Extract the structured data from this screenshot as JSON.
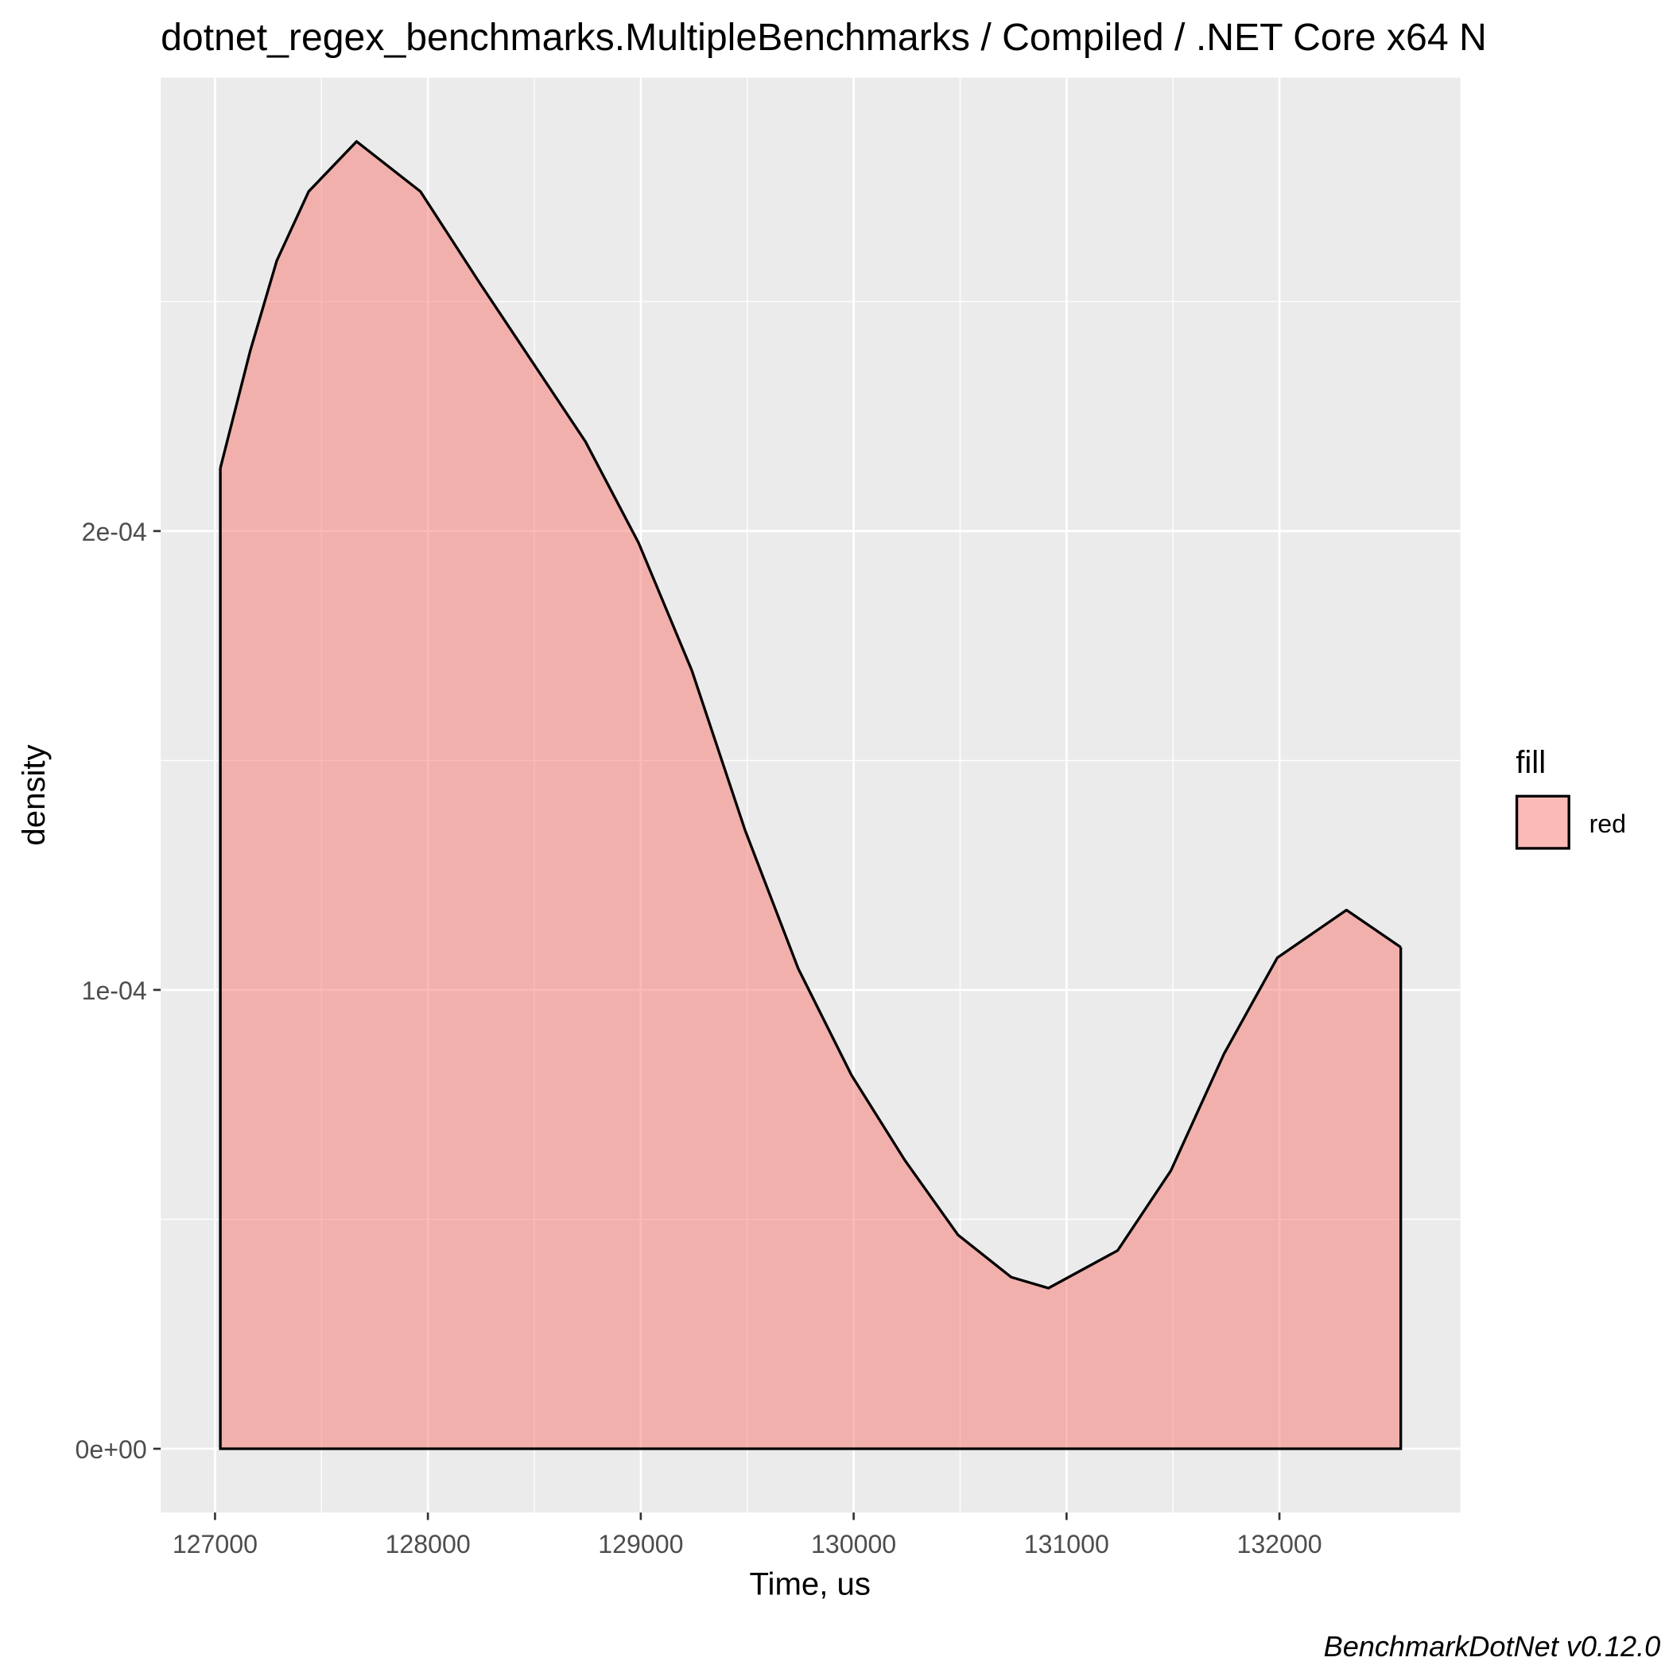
{
  "chart_data": {
    "type": "density",
    "title": "dotnet_regex_benchmarks.MultipleBenchmarks / Compiled / .NET Core x64 N",
    "x_label": "Time, us",
    "y_label": "density",
    "caption": "BenchmarkDotNet v0.12.0",
    "legend_title": "fill",
    "legend_position": "right",
    "series": [
      {
        "name": "red",
        "color": "#F8766D",
        "opacity": 0.5,
        "x": [
          127025,
          127165,
          127290,
          127440,
          127665,
          127965,
          128240,
          128490,
          128740,
          128990,
          129240,
          129490,
          129740,
          129990,
          130240,
          130490,
          130740,
          130915,
          131240,
          131490,
          131740,
          131990,
          132315,
          132570
        ],
        "values": [
          0.0002137,
          0.0002392,
          0.0002589,
          0.000274,
          0.0002849,
          0.000274,
          0.0002543,
          0.0002369,
          0.0002195,
          0.0001974,
          0.0001696,
          0.0001348,
          0.0001046,
          8.14e-05,
          6.29e-05,
          4.66e-05,
          3.74e-05,
          3.5e-05,
          4.32e-05,
          6.06e-05,
          8.61e-05,
          0.000107,
          0.0001174,
          0.0001093
        ]
      }
    ],
    "xlim": [
      126745,
      132850
    ],
    "xticks": [
      127000,
      128000,
      129000,
      130000,
      131000,
      132000
    ],
    "ylim": [
      -1.39e-05,
      0.0002988
    ],
    "yticks": [
      {
        "value": 0,
        "label": "0e+00"
      },
      {
        "value": 0.0001,
        "label": "1e-04"
      },
      {
        "value": 0.0002,
        "label": "2e-04"
      }
    ],
    "grid": true,
    "minor_grid": true
  }
}
